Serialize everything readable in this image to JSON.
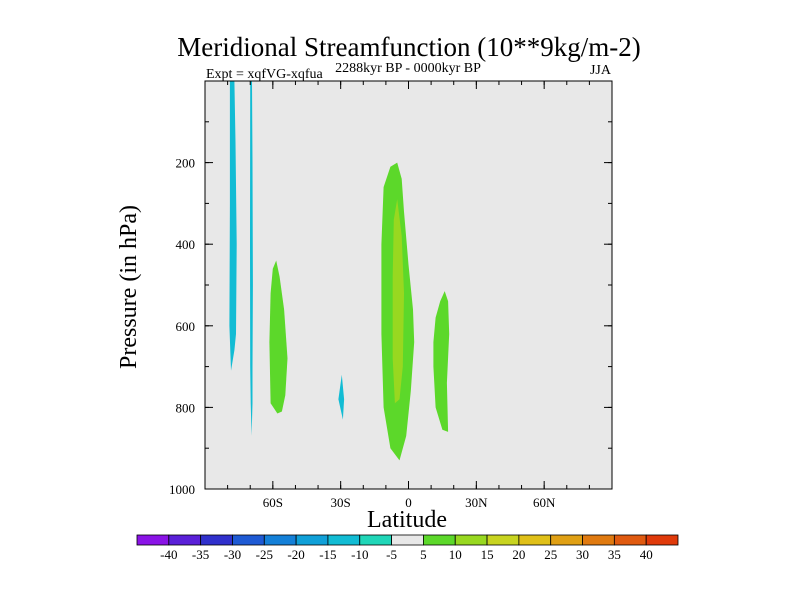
{
  "chart_data": {
    "type": "heatmap",
    "title": "Meridional Streamfunction (10**9kg/m-2)",
    "left_label": "Expt = xqfVG-xqfua",
    "center_label": "2288kyr BP - 0000kyr BP",
    "right_label": "JJA",
    "xlabel": "Latitude",
    "ylabel": "Pressure (in hPa)",
    "xlim": [
      -90,
      90
    ],
    "ylim": [
      1000,
      0
    ],
    "x_ticks": [
      {
        "value": -60,
        "label": "60S"
      },
      {
        "value": -30,
        "label": "30S"
      },
      {
        "value": 0,
        "label": "0"
      },
      {
        "value": 30,
        "label": "30N"
      },
      {
        "value": 60,
        "label": "60N"
      }
    ],
    "y_ticks": [
      {
        "value": 200,
        "label": "200"
      },
      {
        "value": 400,
        "label": "400"
      },
      {
        "value": 600,
        "label": "600"
      },
      {
        "value": 800,
        "label": "800"
      },
      {
        "value": 1000,
        "label": "1000"
      }
    ],
    "background_color": "#e8e8e8",
    "colorbar": {
      "levels": [
        "-40",
        "-35",
        "-30",
        "-25",
        "-20",
        "-15",
        "-10",
        "-5",
        "5",
        "10",
        "15",
        "20",
        "25",
        "30",
        "35",
        "40"
      ],
      "colors": [
        "#8a13e6",
        "#5a20d8",
        "#3030cc",
        "#1e5ad4",
        "#1480d8",
        "#10a0d8",
        "#12bcd4",
        "#20d6b8",
        "#e8e8e8",
        "#5cd82a",
        "#98d820",
        "#c8d420",
        "#e0c018",
        "#e0a014",
        "#e07a10",
        "#e05a10",
        "#e03a0a"
      ]
    },
    "contours": [
      {
        "name": "neg-band-75S",
        "level": "-10",
        "polygon": [
          [
            -79,
            0
          ],
          [
            -77,
            0
          ],
          [
            -76.5,
            150
          ],
          [
            -76,
            400
          ],
          [
            -76.3,
            620
          ],
          [
            -77,
            660
          ],
          [
            -78.5,
            710
          ],
          [
            -79.2,
            600
          ],
          [
            -79,
            300
          ]
        ]
      },
      {
        "name": "neg-band-70S",
        "level": "-10",
        "polygon": [
          [
            -70,
            0
          ],
          [
            -69.2,
            0
          ],
          [
            -69,
            200
          ],
          [
            -68.8,
            500
          ],
          [
            -69,
            700
          ],
          [
            -69,
            790
          ],
          [
            -69.4,
            870
          ],
          [
            -69.8,
            790
          ],
          [
            -70,
            700
          ],
          [
            -70.1,
            400
          ]
        ]
      },
      {
        "name": "neg-spot-30S",
        "level": "-10",
        "polygon": [
          [
            -29.5,
            720
          ],
          [
            -28.5,
            780
          ],
          [
            -29,
            830
          ],
          [
            -31,
            780
          ]
        ]
      },
      {
        "name": "pos-60S",
        "level": "5",
        "polygon": [
          [
            -58.5,
            440
          ],
          [
            -57,
            480
          ],
          [
            -55,
            560
          ],
          [
            -53.5,
            680
          ],
          [
            -54.5,
            770
          ],
          [
            -56,
            810
          ],
          [
            -58,
            815
          ],
          [
            -61,
            790
          ],
          [
            -61.5,
            640
          ],
          [
            -61,
            520
          ],
          [
            -60,
            460
          ]
        ]
      },
      {
        "name": "pos-equator-outer",
        "level": "5",
        "polygon": [
          [
            -5,
            200
          ],
          [
            -3,
            240
          ],
          [
            -2,
            320
          ],
          [
            0,
            450
          ],
          [
            2,
            560
          ],
          [
            2.5,
            640
          ],
          [
            1,
            760
          ],
          [
            -1,
            870
          ],
          [
            -4,
            930
          ],
          [
            -8,
            900
          ],
          [
            -11,
            800
          ],
          [
            -12,
            620
          ],
          [
            -12,
            400
          ],
          [
            -11,
            260
          ],
          [
            -8,
            210
          ]
        ]
      },
      {
        "name": "pos-equator-core",
        "level": "10",
        "polygon": [
          [
            -5,
            290
          ],
          [
            -3,
            380
          ],
          [
            -2,
            520
          ],
          [
            -2.5,
            700
          ],
          [
            -4,
            780
          ],
          [
            -6,
            790
          ],
          [
            -7,
            680
          ],
          [
            -7,
            480
          ],
          [
            -6.5,
            340
          ]
        ]
      },
      {
        "name": "pos-15N",
        "level": "5",
        "polygon": [
          [
            16,
            515
          ],
          [
            17.5,
            540
          ],
          [
            18,
            620
          ],
          [
            17,
            740
          ],
          [
            17.5,
            860
          ],
          [
            15,
            855
          ],
          [
            12,
            800
          ],
          [
            11,
            700
          ],
          [
            11,
            640
          ],
          [
            12,
            580
          ],
          [
            14,
            540
          ]
        ]
      }
    ]
  }
}
